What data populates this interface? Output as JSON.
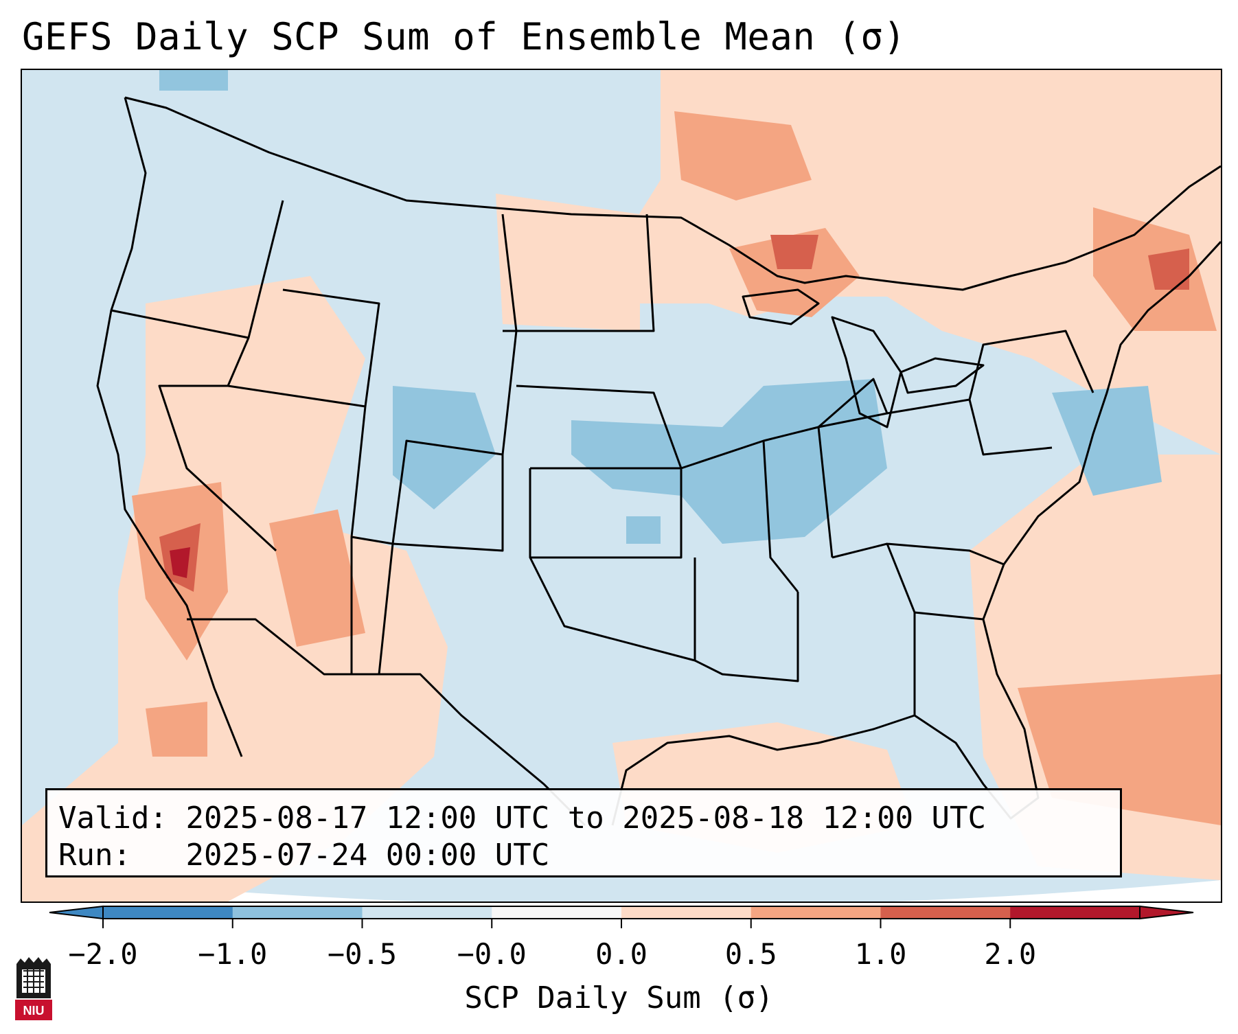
{
  "title": "GEFS Daily SCP Sum of Ensemble Mean (σ)",
  "info": {
    "valid_label": "Valid:",
    "valid_value": "2025-08-17 12:00 UTC to 2025-08-18 12:00 UTC",
    "run_label": "Run:",
    "run_value": "2025-07-24 00:00 UTC"
  },
  "colorbar": {
    "label": "SCP Daily Sum (σ)",
    "ticks": [
      "−2.0",
      "−1.0",
      "−0.5",
      "−0.0",
      "0.0",
      "0.5",
      "1.0",
      "2.0"
    ],
    "colors": [
      "#3e88c2",
      "#8ec1de",
      "#d1e5f0",
      "#f7f7f7",
      "#fddbc7",
      "#f4a582",
      "#d6604d",
      "#b2182b"
    ],
    "extend": "both"
  },
  "logo": {
    "text": "NIU",
    "color": "#c8102e"
  },
  "map": {
    "background_color": "#d1e5f0",
    "variable": "SCP daily sum anomaly",
    "region": "Contiguous United States"
  }
}
